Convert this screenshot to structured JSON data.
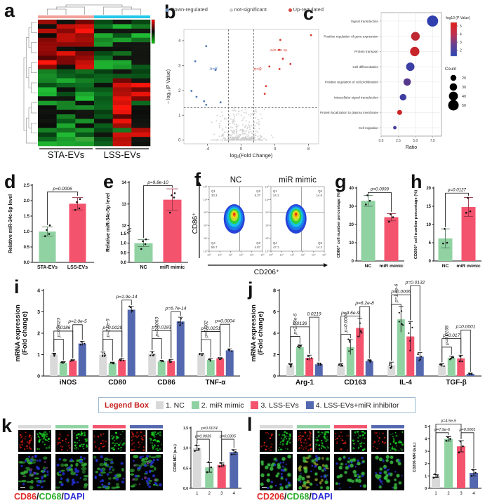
{
  "letters": {
    "a": "a",
    "b": "b",
    "c": "c",
    "d": "d",
    "e": "e",
    "f": "f",
    "g": "g",
    "h": "h",
    "i": "i",
    "j": "j",
    "k": "k",
    "l": "l"
  },
  "group_colors": {
    "gray": "#d9d9d9",
    "green": "#90d2a2",
    "red": "#f4536e",
    "blue": "#5468b0"
  },
  "panel_a": {
    "group_labels": [
      "STA-EVs",
      "LSS-EVs"
    ],
    "anno_colors": [
      "#f2a09a",
      "#25c8e8"
    ],
    "pattern": [
      {
        "r": [
          0,
          11
        ],
        "c": [
          0,
          3
        ],
        "p": [
          "red",
          "red",
          "darkred",
          "black"
        ]
      },
      {
        "r": [
          0,
          11
        ],
        "c": [
          3,
          6
        ],
        "p": [
          "green",
          "darkgreen",
          "black",
          "green"
        ]
      },
      {
        "r": [
          3,
          8
        ],
        "c": [
          5,
          6
        ],
        "p": [
          "green",
          "green",
          "black"
        ]
      },
      {
        "r": [
          11,
          28
        ],
        "c": [
          0,
          3
        ],
        "p": [
          "green",
          "darkgreen",
          "green",
          "black"
        ]
      },
      {
        "r": [
          11,
          28
        ],
        "c": [
          3,
          4
        ],
        "p": [
          "darkgreen",
          "black",
          "darkgreen"
        ]
      },
      {
        "r": [
          11,
          13
        ],
        "c": [
          4,
          6
        ],
        "p": [
          "black",
          "darkgreen"
        ]
      },
      {
        "r": [
          13,
          26
        ],
        "c": [
          4,
          5
        ],
        "p": [
          "red",
          "red",
          "red",
          "darkred"
        ]
      },
      {
        "r": [
          13,
          18
        ],
        "c": [
          5,
          6
        ],
        "p": [
          "red",
          "black",
          "darkred"
        ]
      },
      {
        "r": [
          18,
          24
        ],
        "c": [
          5,
          6
        ],
        "p": [
          "black",
          "darkgreen",
          "darkred"
        ]
      },
      {
        "r": [
          24,
          28
        ],
        "c": [
          4,
          6
        ],
        "p": [
          "red",
          "black",
          "green"
        ]
      },
      {
        "r": [
          25,
          27
        ],
        "c": [
          0,
          3
        ],
        "p": [
          "green",
          "brightgreen",
          "darkgreen"
        ]
      },
      {
        "r": [
          27,
          28
        ],
        "c": [
          0,
          3
        ],
        "p": [
          "darkgreen",
          "black",
          "green"
        ]
      }
    ]
  },
  "panel_f": {
    "plots": [
      {
        "title": "NC",
        "quadrants": {
          "Q1": "33.3",
          "Q2": "5.37",
          "Q3": "4.87",
          "Q4": "56.7"
        }
      },
      {
        "title": "miR mimic",
        "quadrants": {
          "Q1": "24.1",
          "Q2": "14.6",
          "Q3": "14.2",
          "Q4": "47.1"
        }
      }
    ],
    "xlabel": "CD206⁺",
    "ylabel": "CD86⁺",
    "ticks": [
      "10⁰",
      "10¹",
      "10²",
      "10³",
      "10⁴",
      "10⁵"
    ]
  },
  "legend_box": {
    "title": "Legend Box",
    "items": [
      {
        "label": "1. NC",
        "color": "#d9d9d9"
      },
      {
        "label": "2. miR mimic",
        "color": "#90d2a2"
      },
      {
        "label": "3. LSS-EVs",
        "color": "#f4536e"
      },
      {
        "label": "4. LSS-EVs+miR inhibitor",
        "color": "#5468b0"
      }
    ]
  },
  "panel_k": {
    "channel_label": [
      {
        "text": "CD86",
        "color": "#e02a28"
      },
      {
        "text": "/",
        "color": "#111111"
      },
      {
        "text": "CD68",
        "color": "#2fae2f"
      },
      {
        "text": "/",
        "color": "#111111"
      },
      {
        "text": "DAPI",
        "color": "#2a2ad8"
      }
    ]
  },
  "panel_l": {
    "channel_label": [
      {
        "text": "CD206",
        "color": "#e02a28"
      },
      {
        "text": "/",
        "color": "#111111"
      },
      {
        "text": "CD68",
        "color": "#2fae2f"
      },
      {
        "text": "/",
        "color": "#111111"
      },
      {
        "text": "DAPI",
        "color": "#2a2ad8"
      }
    ]
  },
  "chart_data": [
    {
      "id": "b",
      "type": "scatter",
      "xlabel": "log₂(Fold Change)",
      "ylabel": "− log₁₀(P Value)",
      "xticks": [
        -4,
        0,
        4,
        8
      ],
      "yticks": [
        0,
        1,
        2,
        3,
        4
      ],
      "xlim": [
        -6.8,
        9.2
      ],
      "ylim": [
        -0.15,
        4.45
      ],
      "thresholds": {
        "x": [
          -1.5,
          1.5
        ],
        "y": 1.3
      },
      "legend": [
        {
          "label": "Down-regulated",
          "color": "#7b9cc8"
        },
        {
          "label": "not-significant",
          "color": "#cfcfcf"
        },
        {
          "label": "Up-regulated",
          "color": "#d6483e"
        }
      ],
      "down_points": [
        [
          -4.15,
          3.78
        ],
        [
          -5.45,
          3.17
        ],
        [
          -3.05,
          2.82
        ],
        [
          -5.9,
          1.98
        ],
        [
          -5.3,
          1.74
        ],
        [
          -4.4,
          1.56
        ],
        [
          -2.45,
          1.52
        ],
        [
          -4.15,
          1.42
        ]
      ],
      "up_points": [
        [
          8.3,
          4.22
        ],
        [
          4.65,
          4.03
        ],
        [
          4.5,
          3.63
        ],
        [
          4.95,
          3.27
        ],
        [
          5.85,
          3.06
        ],
        [
          3.35,
          2.96
        ],
        [
          4.55,
          2.86
        ],
        [
          2.95,
          2.17
        ],
        [
          2.8,
          1.86
        ]
      ],
      "annotations": [
        {
          "text": "n=8",
          "x": -3.3,
          "y": 2.82,
          "color": "#4d79b5",
          "size": 6.5
        },
        {
          "text": "n=9",
          "x": 1.95,
          "y": 2.8,
          "color": "#d6392e",
          "size": 6.5
        },
        {
          "text": "miR-34c-5p",
          "x": 4.45,
          "y": 3.57,
          "color": "#d6392e",
          "size": 4.8
        }
      ],
      "gray_cloud_count": 300
    },
    {
      "id": "c",
      "type": "bubble",
      "xlabel": "Ratio",
      "xticks": [
        0,
        2.5,
        5,
        7.5
      ],
      "xlim": [
        0,
        8.8
      ],
      "categories": [
        "Signal transduction",
        "Positive regulation of gene expression",
        "Protein transport",
        "Cell differentiation",
        "Positive regulation of cell proliferation",
        "Intracellular signal transduction",
        "Protein localization to plasma membrane",
        "Cell migration"
      ],
      "ratio": [
        7.5,
        5.0,
        4.9,
        4.25,
        3.8,
        3.2,
        2.7,
        2.0
      ],
      "count": [
        55,
        40,
        44,
        38,
        32,
        27,
        17,
        7
      ],
      "neglog10_pvalue": [
        1.5,
        4.4,
        4.6,
        1.7,
        2.3,
        1.8,
        4.7,
        1.9
      ],
      "legend_color_title": "-log10 (P Value)",
      "legend_color_ticks": [
        5,
        4,
        3,
        2
      ],
      "legend_size_title": "Count",
      "legend_size_values": [
        20,
        30,
        40,
        50
      ]
    },
    {
      "id": "d",
      "type": "bar",
      "categories": [
        "STA-EVs",
        "LSS-EVs"
      ],
      "values": [
        1.0,
        1.9
      ],
      "errors": [
        0.15,
        0.2
      ],
      "colors": [
        "#90d2a2",
        "#f4536e"
      ],
      "ylabel": "Relative miR-34c-5p level",
      "ylim": [
        0,
        2.5
      ],
      "yticks": [
        0,
        0.5,
        1,
        1.5,
        2,
        2.5
      ],
      "p_label": "p=0.0006",
      "bracket_y": 2.28,
      "dots": [
        [
          0.85,
          0.92,
          1.05,
          1.2
        ],
        [
          1.7,
          1.75,
          1.95,
          2.05
        ]
      ]
    },
    {
      "id": "e",
      "type": "bar",
      "categories": [
        "NC",
        "miR mimic"
      ],
      "values": [
        1.0,
        13.2
      ],
      "errors": [
        0.18,
        0.5
      ],
      "colors": [
        "#90d2a2",
        "#f4536e"
      ],
      "ylabel": "Relative miR-34c-5p level",
      "yticks_lower": [
        0,
        0.5,
        1,
        1.5
      ],
      "yticks_upper": [
        12,
        13,
        14
      ],
      "axis_break": {
        "lower_max": 1.5,
        "upper_min": 12,
        "upper_max": 14
      },
      "p_label": "p=9.8e-10",
      "bracket_y": 13.85,
      "dots": [
        [
          0.7,
          0.95,
          1.1,
          1.2
        ],
        [
          12.6,
          13.3,
          13.4,
          13.5
        ]
      ]
    },
    {
      "id": "g",
      "type": "bar",
      "categories": [
        "NC",
        "miR mimic"
      ],
      "values": [
        33,
        24
      ],
      "errors": [
        3,
        2
      ],
      "colors": [
        "#90d2a2",
        "#f4536e"
      ],
      "ylabel": "CD86⁺ cell number percentage (%)",
      "ylim": [
        0,
        40
      ],
      "yticks": [
        0,
        10,
        20,
        30,
        40
      ],
      "p_label": "p=0.0099",
      "bracket_y": 37.5,
      "dots": [
        [
          31,
          33,
          36
        ],
        [
          21.5,
          24,
          25.5
        ]
      ]
    },
    {
      "id": "h",
      "type": "bar",
      "categories": [
        "NC",
        "miR mimic"
      ],
      "values": [
        6.2,
        14.8
      ],
      "errors": [
        2.6,
        2.6
      ],
      "colors": [
        "#90d2a2",
        "#f4536e"
      ],
      "ylabel": "CD206⁺ cell number percentage (%)",
      "ylim": [
        0,
        20
      ],
      "yticks": [
        0,
        5,
        10,
        15,
        20
      ],
      "p_label": "p=0.0127",
      "bracket_y": 18.6,
      "dots": [
        [
          4.8,
          5.0,
          8.8
        ],
        [
          13.2,
          13.6,
          17.3
        ]
      ]
    },
    {
      "id": "i",
      "type": "grouped_bar",
      "ylabel_lines": [
        "mRNA expression",
        "(Fold change)"
      ],
      "ylim": [
        0,
        4
      ],
      "yticks": [
        0,
        1,
        2,
        3,
        4
      ],
      "series_colors": [
        "#d9d9d9",
        "#90d2a2",
        "#f4536e",
        "#5468b0"
      ],
      "groups": [
        {
          "name": "iNOS",
          "values": [
            1.0,
            0.62,
            0.72,
            1.52
          ],
          "errors": [
            0.07,
            0.05,
            0.04,
            0.1
          ],
          "brackets": [
            {
              "f": 0,
              "t": 1,
              "y": 1.72,
              "label": "p=0.0023",
              "rot": true
            },
            {
              "f": 0,
              "t": 2,
              "y": 2.1,
              "label": "0.0186"
            },
            {
              "f": 2,
              "t": 3,
              "y": 2.4,
              "label": "p=2.0e-5"
            }
          ]
        },
        {
          "name": "CD80",
          "values": [
            1.0,
            0.6,
            0.75,
            3.1
          ],
          "errors": [
            0.12,
            0.05,
            0.06,
            0.15
          ],
          "brackets": [
            {
              "f": 0,
              "t": 1,
              "y": 1.72,
              "label": "p=2.5e-5",
              "rot": true
            },
            {
              "f": 0,
              "t": 2,
              "y": 2.1,
              "label": "p=0.0029"
            },
            {
              "f": 2,
              "t": 3,
              "y": 3.55,
              "label": "p=1.9e-14"
            }
          ]
        },
        {
          "name": "CD86",
          "values": [
            1.05,
            0.68,
            0.7,
            2.55
          ],
          "errors": [
            0.1,
            0.04,
            0.08,
            0.2
          ],
          "brackets": [
            {
              "f": 0,
              "t": 1,
              "y": 1.75,
              "label": "p=0.0063",
              "rot": true
            },
            {
              "f": 0,
              "t": 2,
              "y": 2.12,
              "label": "p=0.0183"
            },
            {
              "f": 2,
              "t": 3,
              "y": 3.0,
              "label": "p=6.7e-14"
            }
          ]
        },
        {
          "name": "TNF-α",
          "values": [
            1.0,
            0.75,
            0.82,
            1.2
          ],
          "errors": [
            0.06,
            0.05,
            0.04,
            0.07
          ],
          "brackets": [
            {
              "f": 0,
              "t": 1,
              "y": 1.7,
              "label": "p=0.002",
              "rot": true
            },
            {
              "f": 0,
              "t": 2,
              "y": 2.08,
              "label": "p=0.0251"
            },
            {
              "f": 2,
              "t": 3,
              "y": 2.42,
              "label": "p=0.0004"
            }
          ]
        }
      ]
    },
    {
      "id": "j",
      "type": "grouped_bar",
      "ylabel_lines": [
        "mRNA expression",
        "(Fold change)"
      ],
      "ylim": [
        0,
        8
      ],
      "yticks": [
        0,
        2,
        4,
        6,
        8
      ],
      "series_colors": [
        "#d9d9d9",
        "#90d2a2",
        "#f4536e",
        "#5468b0"
      ],
      "groups": [
        {
          "name": "Arg-1",
          "values": [
            1.0,
            2.7,
            1.7,
            1.1
          ],
          "errors": [
            0.15,
            0.2,
            0.25,
            0.12
          ],
          "brackets": [
            {
              "f": 0,
              "t": 1,
              "y": 3.7,
              "label": "p=2.06e-5",
              "rot": true
            },
            {
              "f": 0,
              "t": 2,
              "y": 4.6,
              "label": "0.0136"
            },
            {
              "f": 2,
              "t": 3,
              "y": 5.5,
              "label": "0.0219"
            }
          ]
        },
        {
          "name": "CD163",
          "values": [
            1.0,
            2.7,
            4.5,
            1.4
          ],
          "errors": [
            0.15,
            0.7,
            0.9,
            0.1
          ],
          "brackets": [
            {
              "f": 0,
              "t": 1,
              "y": 3.9,
              "label": "p=0.0004",
              "rot": true
            },
            {
              "f": 0,
              "t": 2,
              "y": 5.6,
              "label": "p=9.6e-9"
            },
            {
              "f": 2,
              "t": 3,
              "y": 6.5,
              "label": "p=6.2e-8"
            }
          ]
        },
        {
          "name": "IL-4",
          "values": [
            1.0,
            5.3,
            3.7,
            1.8
          ],
          "errors": [
            0.3,
            1.2,
            1.4,
            0.4
          ],
          "brackets": [
            {
              "f": 0,
              "t": 1,
              "y": 6.7,
              "label": "p=1.4e-6",
              "rot": true
            },
            {
              "f": 0,
              "t": 2,
              "y": 7.6,
              "label": "p=0.0006"
            },
            {
              "f": 2,
              "t": 3,
              "y": 8.45,
              "label": "p=0.0132"
            }
          ]
        },
        {
          "name": "TGF-β",
          "values": [
            1.0,
            1.7,
            1.65,
            0.2
          ],
          "errors": [
            0.15,
            0.15,
            0.3,
            0.06
          ],
          "brackets": [
            {
              "f": 0,
              "t": 1,
              "y": 2.7,
              "label": "p=0.0168",
              "rot": true
            },
            {
              "f": 0,
              "t": 2,
              "y": 3.5,
              "label": "p=0.017"
            },
            {
              "f": 2,
              "t": 3,
              "y": 4.3,
              "label": "p=0.0001"
            }
          ]
        }
      ]
    },
    {
      "id": "k_mfi",
      "type": "bar",
      "categories": [
        "1",
        "2",
        "3",
        "4"
      ],
      "values": [
        1.0,
        0.52,
        0.58,
        0.9
      ],
      "errors": [
        0.06,
        0.12,
        0.05,
        0.06
      ],
      "colors": [
        "#d9d9d9",
        "#90d2a2",
        "#f4536e",
        "#5468b0"
      ],
      "ylabel": "CD86 MFI (a.u.)",
      "ylim": [
        0,
        1.5
      ],
      "yticks": [
        0,
        0.5,
        1,
        1.5
      ],
      "brackets": [
        {
          "f": 0,
          "t": 1,
          "y": 1.22,
          "label": "p=0.0039"
        },
        {
          "f": 0,
          "t": 2,
          "y": 1.42,
          "label": "p=0.0074"
        },
        {
          "f": 2,
          "t": 3,
          "y": 1.22,
          "label": "p=0.0305"
        }
      ],
      "dots": [
        [
          0.93,
          0.98,
          1.07
        ],
        [
          0.4,
          0.52,
          0.65
        ],
        [
          0.54,
          0.58,
          0.63
        ],
        [
          0.84,
          0.9,
          0.95
        ]
      ]
    },
    {
      "id": "l_mfi",
      "type": "bar",
      "categories": [
        "1",
        "2",
        "3",
        "4"
      ],
      "values": [
        1.0,
        4.0,
        3.4,
        1.25
      ],
      "errors": [
        0.12,
        0.18,
        0.45,
        0.25
      ],
      "colors": [
        "#d9d9d9",
        "#90d2a2",
        "#f4536e",
        "#5468b0"
      ],
      "ylabel": "CD206 MFI (a.u.)",
      "ylim": [
        0,
        5
      ],
      "yticks": [
        0,
        1,
        2,
        3,
        4,
        5
      ],
      "brackets": [
        {
          "f": 0,
          "t": 1,
          "y": 4.5,
          "label": "p=7.9e-6"
        },
        {
          "f": 0,
          "t": 2,
          "y": 5.2,
          "label": "p=4.5e-5"
        },
        {
          "f": 2,
          "t": 3,
          "y": 4.5,
          "label": "p=0.0001"
        }
      ],
      "dots": [
        [
          0.85,
          1.0,
          1.15
        ],
        [
          3.85,
          4.0,
          4.15
        ],
        [
          2.9,
          3.4,
          3.8
        ],
        [
          1.0,
          1.25,
          1.5
        ]
      ]
    }
  ]
}
